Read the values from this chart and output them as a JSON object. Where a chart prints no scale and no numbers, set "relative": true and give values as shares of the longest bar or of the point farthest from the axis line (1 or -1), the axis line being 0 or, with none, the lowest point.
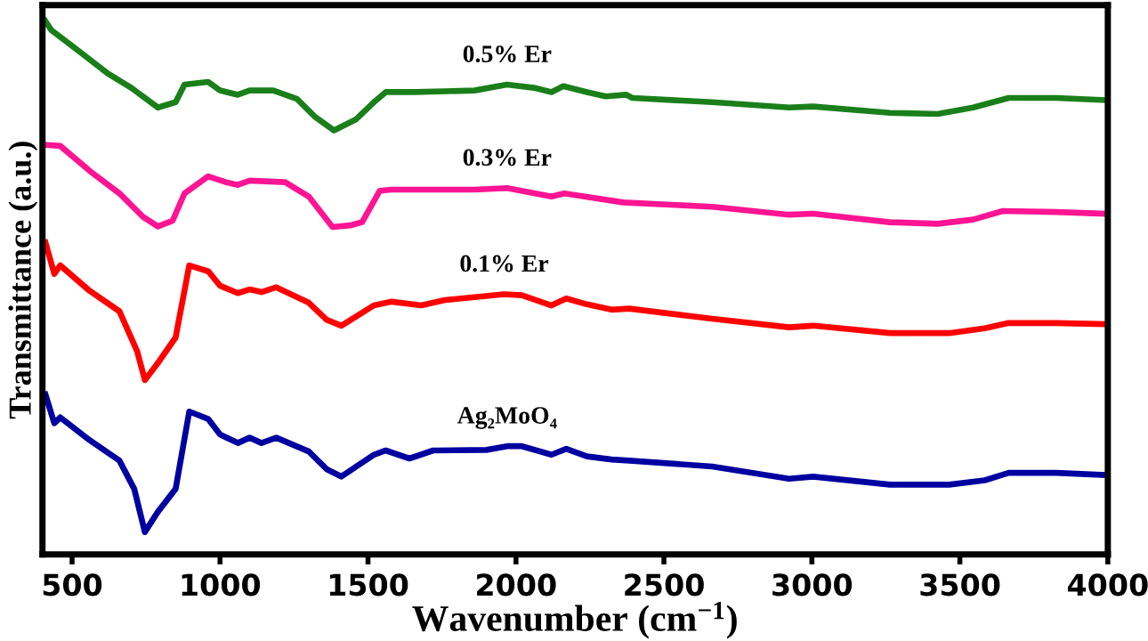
{
  "chart_data": {
    "type": "line",
    "relative": true,
    "xlabel": "Wavenumber (cm$^{−1}$)",
    "ylabel": "Transmittance (a.u.)",
    "xlim": [
      400,
      4000
    ],
    "xticks": [
      500,
      1000,
      1500,
      2000,
      2500,
      3000,
      3500,
      4000
    ],
    "tick_labels": "x",
    "grid": false,
    "legend": false,
    "marker": "none",
    "line_style": "solid",
    "series": [
      {
        "name": "0.5% Er",
        "color": "#1a7f1a",
        "x": [
          410,
          430,
          520,
          620,
          700,
          790,
          850,
          880,
          960,
          1000,
          1060,
          1100,
          1180,
          1260,
          1320,
          1385,
          1460,
          1520,
          1560,
          1660,
          1860,
          1970,
          2060,
          2120,
          2160,
          2240,
          2303,
          2373,
          2393,
          2663,
          2923,
          3004,
          3264,
          3425,
          3545,
          3665,
          3825,
          3985
        ],
        "values": [
          1.0,
          0.983,
          0.945,
          0.902,
          0.875,
          0.838,
          0.848,
          0.881,
          0.886,
          0.87,
          0.862,
          0.87,
          0.87,
          0.854,
          0.821,
          0.795,
          0.816,
          0.848,
          0.867,
          0.867,
          0.87,
          0.881,
          0.875,
          0.867,
          0.878,
          0.867,
          0.859,
          0.862,
          0.856,
          0.848,
          0.838,
          0.84,
          0.828,
          0.826,
          0.838,
          0.856,
          0.856,
          0.852
        ]
      },
      {
        "name": "0.3% Er",
        "color": "#ff1493",
        "x": [
          410,
          460,
          560,
          660,
          740,
          790,
          840,
          880,
          960,
          1020,
          1060,
          1100,
          1220,
          1300,
          1380,
          1440,
          1480,
          1540,
          1580,
          1860,
          1970,
          2120,
          2163,
          2363,
          2663,
          2923,
          3004,
          3264,
          3425,
          3545,
          3645,
          3825,
          3985
        ],
        "values": [
          0.768,
          0.766,
          0.719,
          0.677,
          0.633,
          0.615,
          0.626,
          0.677,
          0.709,
          0.698,
          0.693,
          0.701,
          0.698,
          0.671,
          0.614,
          0.617,
          0.623,
          0.682,
          0.684,
          0.684,
          0.687,
          0.671,
          0.677,
          0.66,
          0.652,
          0.637,
          0.639,
          0.623,
          0.62,
          0.628,
          0.644,
          0.642,
          0.639
        ]
      },
      {
        "name": "0.1% Er",
        "color": "#ff0000",
        "x": [
          410,
          440,
          460,
          560,
          660,
          720,
          746,
          790,
          850,
          896,
          960,
          1000,
          1060,
          1100,
          1140,
          1190,
          1300,
          1360,
          1410,
          1520,
          1580,
          1680,
          1760,
          1960,
          2020,
          2120,
          2170,
          2240,
          2323,
          2383,
          2663,
          2923,
          3004,
          3264,
          3464,
          3584,
          3665,
          3825,
          3985
        ],
        "values": [
          0.585,
          0.526,
          0.542,
          0.494,
          0.456,
          0.381,
          0.327,
          0.359,
          0.407,
          0.542,
          0.531,
          0.504,
          0.49,
          0.497,
          0.492,
          0.501,
          0.472,
          0.44,
          0.429,
          0.467,
          0.474,
          0.467,
          0.477,
          0.488,
          0.486,
          0.467,
          0.48,
          0.469,
          0.459,
          0.461,
          0.442,
          0.426,
          0.429,
          0.415,
          0.415,
          0.424,
          0.434,
          0.434,
          0.432
        ]
      },
      {
        "name": "Ag₂MoO₄",
        "color": "#0000a0",
        "x": [
          410,
          440,
          460,
          560,
          660,
          710,
          746,
          790,
          850,
          896,
          960,
          1000,
          1060,
          1100,
          1140,
          1190,
          1300,
          1360,
          1410,
          1520,
          1560,
          1640,
          1720,
          1900,
          1970,
          2020,
          2120,
          2170,
          2240,
          2323,
          2383,
          2663,
          2923,
          3004,
          3264,
          3464,
          3584,
          3665,
          3825,
          3985
        ],
        "values": [
          0.3,
          0.246,
          0.257,
          0.214,
          0.176,
          0.123,
          0.042,
          0.08,
          0.123,
          0.268,
          0.254,
          0.225,
          0.209,
          0.219,
          0.209,
          0.219,
          0.193,
          0.16,
          0.146,
          0.187,
          0.195,
          0.18,
          0.195,
          0.196,
          0.203,
          0.203,
          0.187,
          0.198,
          0.184,
          0.178,
          0.176,
          0.165,
          0.142,
          0.146,
          0.131,
          0.131,
          0.139,
          0.153,
          0.153,
          0.149
        ]
      }
    ]
  }
}
